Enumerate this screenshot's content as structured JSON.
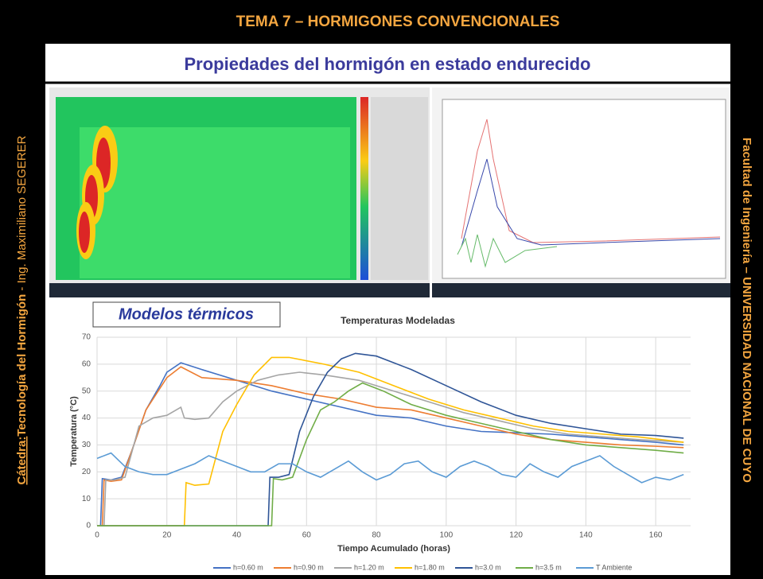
{
  "header": {
    "title": "TEMA 7 – HORMIGONES CONVENCIONALES",
    "subtitle": "Propiedades del hormigón en estado endurecido"
  },
  "sidebar_left": {
    "label": "Cátedra:",
    "course": "Tecnología del Hormigón",
    "author": " - Ing. Maximiliano SEGERER"
  },
  "sidebar_right": {
    "text": "Facultad de Ingeniería – UNIVERSIDAD NACIONAL DE CUYO"
  },
  "section_label": "Modelos térmicos",
  "chart_data": {
    "type": "line",
    "title": "Temperaturas Modeladas",
    "x_label": "Tiempo Acumulado (horas)",
    "y_label": "Temperatura (°C)",
    "xlim": [
      0,
      170
    ],
    "ylim": [
      0,
      70
    ],
    "xticks": [
      0,
      20,
      40,
      60,
      80,
      100,
      120,
      140,
      160
    ],
    "yticks": [
      0,
      10,
      20,
      30,
      40,
      50,
      60,
      70
    ],
    "grid": true,
    "series": [
      {
        "name": "h=0.60 m",
        "color": "#4472c4",
        "x": [
          1,
          1.5,
          4,
          7,
          10,
          14,
          18,
          20,
          24,
          30,
          40,
          50,
          60,
          70,
          80,
          90,
          100,
          110,
          120,
          130,
          140,
          150,
          160,
          168
        ],
        "values": [
          0,
          17.5,
          17,
          18,
          28,
          43,
          52,
          57,
          60.5,
          58,
          54,
          50,
          47,
          44,
          41,
          40,
          37,
          35,
          34.5,
          34,
          33,
          32,
          31,
          30
        ]
      },
      {
        "name": "h=0.90 m",
        "color": "#ed7d31",
        "x": [
          1.5,
          2,
          4,
          7,
          10,
          14,
          18,
          20,
          24,
          30,
          40,
          50,
          60,
          70,
          80,
          90,
          100,
          110,
          120,
          130,
          140,
          150,
          160,
          168
        ],
        "values": [
          0,
          17,
          16.5,
          17,
          28,
          43,
          51,
          55,
          59,
          55,
          54,
          52,
          49,
          47,
          44,
          43,
          40,
          37,
          34,
          32,
          31,
          30,
          29.5,
          29
        ]
      },
      {
        "name": "h=1.20 m",
        "color": "#a5a5a5",
        "x": [
          2,
          2.5,
          5,
          8,
          12,
          16,
          20,
          24,
          25,
          28,
          32,
          36,
          40,
          46,
          52,
          58,
          65,
          75,
          85,
          95,
          105,
          115,
          125,
          135,
          145,
          155,
          168
        ],
        "values": [
          0,
          17,
          17,
          18,
          37,
          40,
          41,
          44,
          40,
          39.5,
          40,
          46,
          50,
          54,
          56,
          57,
          56,
          54,
          50,
          46,
          42,
          39,
          36,
          34,
          33,
          32,
          31
        ]
      },
      {
        "name": "h=1.80 m",
        "color": "#ffc000",
        "x": [
          0,
          25,
          25.5,
          28,
          32,
          36,
          40,
          45,
          50,
          55,
          65,
          75,
          85,
          95,
          105,
          115,
          125,
          135,
          145,
          155,
          168
        ],
        "values": [
          0,
          0,
          16,
          15,
          15.5,
          35,
          45,
          56,
          62.5,
          62.5,
          60,
          57,
          52,
          47,
          43,
          40,
          37,
          35,
          34,
          33,
          31
        ]
      },
      {
        "name": "h=3.0 m",
        "color": "#2f5597",
        "x": [
          0,
          49,
          49.5,
          52,
          55,
          58,
          62,
          66,
          70,
          74,
          80,
          90,
          100,
          110,
          120,
          130,
          140,
          150,
          160,
          168
        ],
        "values": [
          0,
          0,
          18,
          18,
          19,
          35,
          48,
          57,
          62,
          64,
          63,
          58,
          52,
          46,
          41,
          38,
          36,
          34,
          33.5,
          32.5
        ]
      },
      {
        "name": "h=3.5 m",
        "color": "#70ad47",
        "x": [
          0,
          50,
          50.5,
          53,
          56,
          60,
          64,
          68,
          72,
          76,
          82,
          90,
          100,
          110,
          120,
          130,
          140,
          150,
          160,
          168
        ],
        "values": [
          0,
          0,
          17.5,
          17,
          18,
          32,
          43,
          46,
          50,
          53,
          50,
          45,
          41,
          38,
          35,
          32,
          30,
          29,
          28,
          27
        ]
      },
      {
        "name": "T Ambiente",
        "color": "#5b9bd5",
        "x": [
          0,
          4,
          8,
          12,
          16,
          20,
          24,
          28,
          32,
          36,
          40,
          44,
          48,
          52,
          56,
          60,
          64,
          68,
          72,
          76,
          80,
          84,
          88,
          92,
          96,
          100,
          104,
          108,
          112,
          116,
          120,
          124,
          128,
          132,
          136,
          140,
          144,
          148,
          152,
          156,
          160,
          164,
          168
        ],
        "values": [
          25,
          27,
          22,
          20,
          19,
          19,
          21,
          23,
          26,
          24,
          22,
          20,
          20,
          23,
          23,
          20,
          18,
          21,
          24,
          20,
          17,
          19,
          23,
          24,
          20,
          18,
          22,
          24,
          22,
          19,
          18,
          23,
          20,
          18,
          22,
          24,
          26,
          22,
          19,
          16,
          18,
          17,
          19
        ]
      }
    ]
  }
}
